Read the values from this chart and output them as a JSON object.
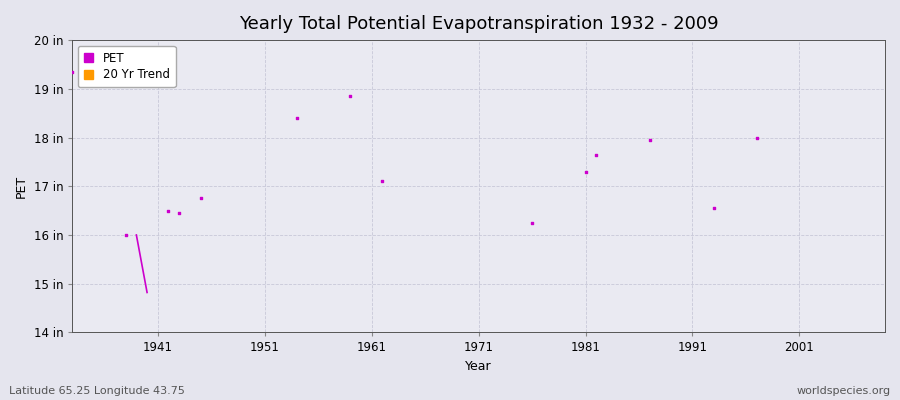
{
  "title": "Yearly Total Potential Evapotranspiration 1932 - 2009",
  "xlabel": "Year",
  "ylabel": "PET",
  "xlim": [
    1933,
    2009
  ],
  "ylim": [
    14,
    20
  ],
  "yticks": [
    14,
    15,
    16,
    17,
    18,
    19,
    20
  ],
  "ytick_labels": [
    "14 in",
    "15 in",
    "16 in",
    "17 in",
    "18 in",
    "19 in",
    "20 in"
  ],
  "xticks": [
    1941,
    1951,
    1961,
    1971,
    1981,
    1991,
    2001
  ],
  "background_color": "#e5e5ee",
  "plot_bg_color": "#eaeaf2",
  "grid_color": "#c8c8d8",
  "pet_color": "#cc00cc",
  "trend_color": "#ff9900",
  "pet_data": [
    [
      1933,
      19.35
    ],
    [
      1938,
      16.0
    ],
    [
      1942,
      16.5
    ],
    [
      1943,
      16.45
    ],
    [
      1945,
      16.75
    ],
    [
      1954,
      18.4
    ],
    [
      1959,
      18.85
    ],
    [
      1962,
      17.1
    ],
    [
      1976,
      16.25
    ],
    [
      1981,
      17.3
    ],
    [
      1982,
      17.65
    ],
    [
      1987,
      17.95
    ],
    [
      1993,
      16.55
    ],
    [
      1997,
      18.0
    ]
  ],
  "trend_data": [
    [
      1939,
      16.0
    ],
    [
      1940,
      14.82
    ]
  ],
  "footer_left": "Latitude 65.25 Longitude 43.75",
  "footer_right": "worldspecies.org",
  "title_fontsize": 13,
  "axis_label_fontsize": 9,
  "tick_fontsize": 8.5,
  "footer_fontsize": 8
}
